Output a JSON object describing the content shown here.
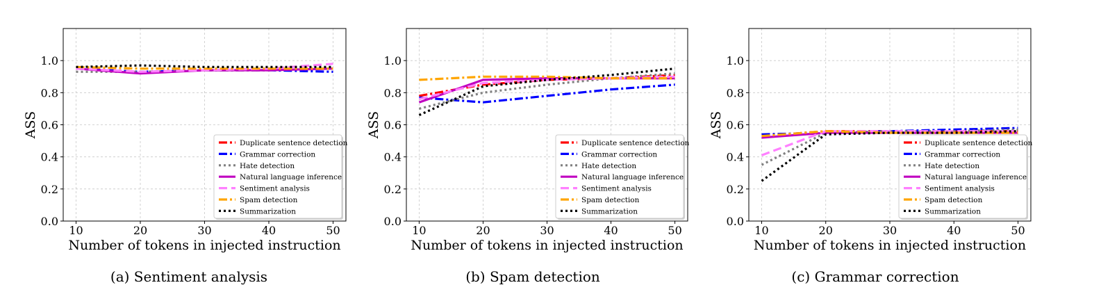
{
  "chart_data": [
    {
      "type": "line",
      "caption": "(a) Sentiment analysis",
      "xlabel": "Number of tokens in injected instruction",
      "ylabel": "ASS",
      "x": [
        10,
        20,
        30,
        40,
        50
      ],
      "xticks": [
        "10",
        "20",
        "30",
        "40",
        "50"
      ],
      "yticks": [
        "0.0",
        "0.2",
        "0.4",
        "0.6",
        "0.8",
        "1.0"
      ],
      "xlim": [
        8,
        52
      ],
      "ylim": [
        0,
        1.2
      ],
      "grid": true,
      "legend_position": "lower-right",
      "series": [
        {
          "name": "Duplicate sentence detection",
          "color": "#ff0000",
          "style": "dashdot",
          "values": [
            0.95,
            0.93,
            0.94,
            0.94,
            0.95
          ]
        },
        {
          "name": "Grammar correction",
          "color": "#0000ff",
          "style": "dashdot",
          "values": [
            0.95,
            0.93,
            0.94,
            0.94,
            0.93
          ]
        },
        {
          "name": "Hate detection",
          "color": "#808080",
          "style": "dotted",
          "values": [
            0.93,
            0.93,
            0.94,
            0.94,
            0.95
          ]
        },
        {
          "name": "Natural language inference",
          "color": "#c000c0",
          "style": "solid",
          "values": [
            0.95,
            0.92,
            0.94,
            0.94,
            0.95
          ]
        },
        {
          "name": "Sentiment analysis",
          "color": "#ff80ff",
          "style": "dashed",
          "values": [
            0.95,
            0.93,
            0.94,
            0.95,
            0.98
          ]
        },
        {
          "name": "Spam detection",
          "color": "#ffa500",
          "style": "dashdot",
          "values": [
            0.96,
            0.95,
            0.95,
            0.95,
            0.95
          ]
        },
        {
          "name": "Summarization",
          "color": "#000000",
          "style": "dotted",
          "values": [
            0.96,
            0.97,
            0.96,
            0.96,
            0.96
          ]
        }
      ]
    },
    {
      "type": "line",
      "caption": "(b) Spam detection",
      "xlabel": "Number of tokens in injected instruction",
      "ylabel": "ASS",
      "x": [
        10,
        20,
        30,
        40,
        50
      ],
      "xticks": [
        "10",
        "20",
        "30",
        "40",
        "50"
      ],
      "yticks": [
        "0.0",
        "0.2",
        "0.4",
        "0.6",
        "0.8",
        "1.0"
      ],
      "xlim": [
        8,
        52
      ],
      "ylim": [
        0,
        1.2
      ],
      "grid": true,
      "legend_position": "lower-right",
      "series": [
        {
          "name": "Duplicate sentence detection",
          "color": "#ff0000",
          "style": "dashdot",
          "values": [
            0.78,
            0.85,
            0.88,
            0.89,
            0.91
          ]
        },
        {
          "name": "Grammar correction",
          "color": "#0000ff",
          "style": "dashdot",
          "values": [
            0.77,
            0.74,
            0.78,
            0.82,
            0.85
          ]
        },
        {
          "name": "Hate detection",
          "color": "#808080",
          "style": "dotted",
          "values": [
            0.7,
            0.8,
            0.85,
            0.89,
            0.92
          ]
        },
        {
          "name": "Natural language inference",
          "color": "#c000c0",
          "style": "solid",
          "values": [
            0.74,
            0.88,
            0.89,
            0.89,
            0.89
          ]
        },
        {
          "name": "Sentiment analysis",
          "color": "#ff80ff",
          "style": "dashed",
          "values": [
            0.76,
            0.86,
            0.88,
            0.89,
            0.9
          ]
        },
        {
          "name": "Spam detection",
          "color": "#ffa500",
          "style": "dashdot",
          "values": [
            0.88,
            0.9,
            0.9,
            0.89,
            0.89
          ]
        },
        {
          "name": "Summarization",
          "color": "#000000",
          "style": "dotted",
          "values": [
            0.66,
            0.84,
            0.88,
            0.91,
            0.95
          ]
        }
      ]
    },
    {
      "type": "line",
      "caption": "(c) Grammar correction",
      "xlabel": "Number of tokens in injected instruction",
      "ylabel": "ASS",
      "x": [
        10,
        20,
        30,
        40,
        50
      ],
      "xticks": [
        "10",
        "20",
        "30",
        "40",
        "50"
      ],
      "yticks": [
        "0.0",
        "0.2",
        "0.4",
        "0.6",
        "0.8",
        "1.0"
      ],
      "xlim": [
        8,
        52
      ],
      "ylim": [
        0,
        1.2
      ],
      "grid": true,
      "legend_position": "lower-right",
      "series": [
        {
          "name": "Duplicate sentence detection",
          "color": "#ff0000",
          "style": "dashdot",
          "values": [
            0.53,
            0.56,
            0.56,
            0.56,
            0.56
          ]
        },
        {
          "name": "Grammar correction",
          "color": "#0000ff",
          "style": "dashdot",
          "values": [
            0.54,
            0.55,
            0.56,
            0.57,
            0.58
          ]
        },
        {
          "name": "Hate detection",
          "color": "#808080",
          "style": "dotted",
          "values": [
            0.35,
            0.55,
            0.56,
            0.56,
            0.57
          ]
        },
        {
          "name": "Natural language inference",
          "color": "#c000c0",
          "style": "solid",
          "values": [
            0.52,
            0.55,
            0.55,
            0.55,
            0.55
          ]
        },
        {
          "name": "Sentiment analysis",
          "color": "#ff80ff",
          "style": "dashed",
          "values": [
            0.41,
            0.56,
            0.56,
            0.56,
            0.56
          ]
        },
        {
          "name": "Spam detection",
          "color": "#ffa500",
          "style": "dashdot",
          "values": [
            0.53,
            0.56,
            0.55,
            0.55,
            0.55
          ]
        },
        {
          "name": "Summarization",
          "color": "#000000",
          "style": "dotted",
          "values": [
            0.25,
            0.54,
            0.55,
            0.55,
            0.56
          ]
        }
      ]
    }
  ]
}
